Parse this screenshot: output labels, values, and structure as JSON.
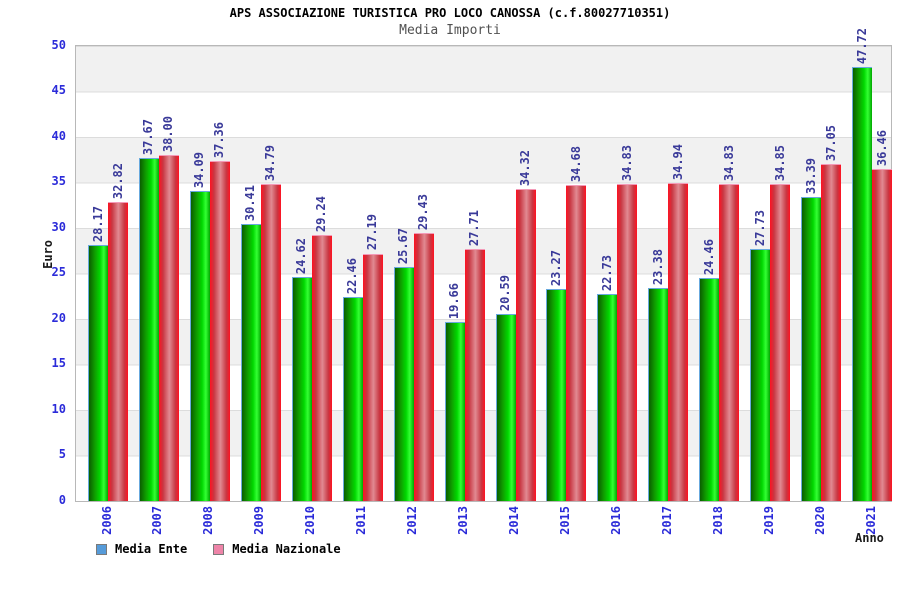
{
  "header": {
    "title": "APS ASSOCIAZIONE TURISTICA PRO LOCO CANOSSA (c.f.80027710351)",
    "subtitle": "Media Importi"
  },
  "chart_data": {
    "type": "bar",
    "title": "APS ASSOCIAZIONE TURISTICA PRO LOCO CANOSSA (c.f.80027710351)",
    "subtitle": "Media Importi",
    "categories": [
      "2006",
      "2007",
      "2008",
      "2009",
      "2010",
      "2011",
      "2012",
      "2013",
      "2014",
      "2015",
      "2016",
      "2017",
      "2018",
      "2019",
      "2020",
      "2021"
    ],
    "series": [
      {
        "name": "Media Ente",
        "values": [
          28.17,
          37.67,
          34.09,
          30.41,
          24.62,
          22.46,
          25.67,
          19.66,
          20.59,
          23.27,
          22.73,
          23.38,
          24.46,
          27.73,
          33.39,
          47.72
        ],
        "legend_color": "#569bd9",
        "border_color": "#68a9de",
        "bar_gradient": "linear-gradient(90deg, #0b5e00 0%, #0fa000 32%, #00d800 58%, #33ff33 78%, #00a700 100%)"
      },
      {
        "name": "Media Nazionale",
        "values": [
          32.82,
          38.0,
          37.36,
          34.79,
          29.24,
          27.19,
          29.43,
          27.71,
          34.32,
          34.68,
          34.83,
          34.94,
          34.83,
          34.85,
          37.05,
          36.46
        ],
        "legend_color": "#ee84a8",
        "border_color": "#f49ab8",
        "bar_gradient": "linear-gradient(90deg, #ff1222 0%, #c83742 20%, #e18a92 52%, #c83742 82%, #ff1222 100%)"
      }
    ],
    "xlabel": "Anno",
    "ylabel": "Euro",
    "ylim": [
      0,
      50
    ],
    "yticks": [
      0,
      5,
      10,
      15,
      20,
      25,
      30,
      35,
      40,
      45,
      50
    ],
    "value_label_decimals": 2,
    "grid": "horizontal-bands-every-5",
    "legend_position": "bottom-left",
    "colors": {
      "tick_label": "#2b2bd9",
      "value_label": "#3a3a99",
      "subtitle": "#515151",
      "band_gray": "#f1f1f1",
      "plot_border": "#b8b8b8"
    }
  },
  "legend": {
    "items": [
      {
        "label": "Media Ente",
        "swatch_color": "#569bd9"
      },
      {
        "label": "Media Nazionale",
        "swatch_color": "#ee84a8"
      }
    ]
  }
}
